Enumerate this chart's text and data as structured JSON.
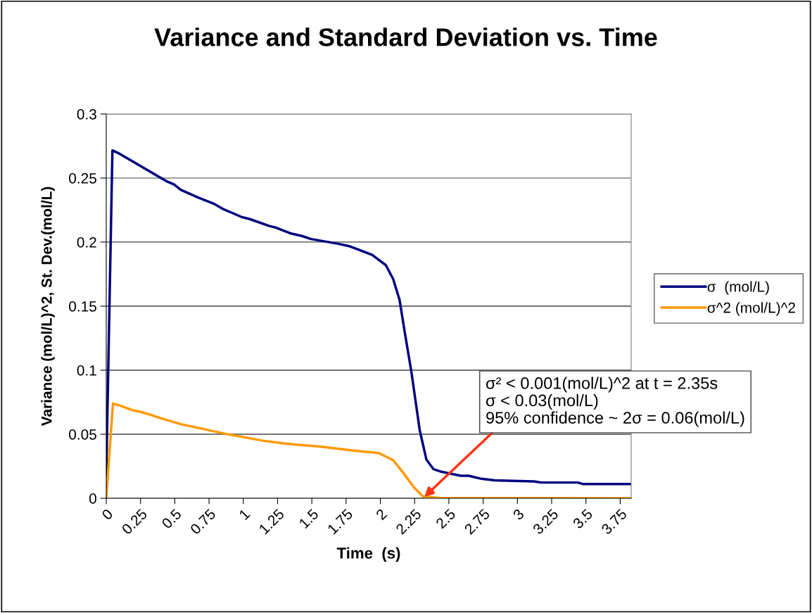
{
  "chart_data": {
    "type": "line",
    "title": "Variance and Standard Deviation vs. Time",
    "xlabel": "Time  (s)",
    "ylabel": "Variance (mol/L)^2, St. Dev.(mol/L)",
    "series": [
      {
        "name": "σ  (mol/L)",
        "color": "#000080",
        "x": [
          0,
          0.045,
          0.097,
          0.438,
          0.495,
          0.543,
          0.667,
          0.79,
          0.857,
          0.99,
          1.047,
          1.19,
          1.237,
          1.342,
          1.427,
          1.494,
          1.693,
          1.778,
          1.94,
          2.04,
          2.093,
          2.14,
          2.178,
          2.226,
          2.287,
          2.336,
          2.388,
          2.445,
          2.587,
          2.644,
          2.738,
          2.834,
          2.967,
          3.118,
          3.175,
          3.44,
          3.48,
          3.829
        ],
        "values": [
          0.018,
          0.2716,
          0.269,
          0.2476,
          0.245,
          0.2409,
          0.235,
          0.2297,
          0.2256,
          0.2195,
          0.218,
          0.2126,
          0.2113,
          0.2069,
          0.2048,
          0.2024,
          0.1987,
          0.1967,
          0.19,
          0.182,
          0.1713,
          0.155,
          0.1297,
          0.099,
          0.0533,
          0.0302,
          0.0227,
          0.0207,
          0.0176,
          0.0176,
          0.0152,
          0.014,
          0.0136,
          0.0132,
          0.0123,
          0.0123,
          0.0111,
          0.0111
        ]
      },
      {
        "name": "σ^2 (mol/L)^2",
        "color": "#ff9900",
        "x": [
          0,
          0.049,
          0.097,
          0.2,
          0.248,
          0.343,
          0.4,
          0.486,
          0.543,
          0.876,
          1.142,
          1.275,
          1.37,
          1.56,
          1.826,
          1.988,
          2.093,
          2.168,
          2.245,
          2.312,
          2.435,
          3.829
        ],
        "values": [
          0,
          0.074,
          0.0725,
          0.0685,
          0.0676,
          0.0645,
          0.0624,
          0.0597,
          0.0579,
          0.0502,
          0.045,
          0.0431,
          0.042,
          0.0404,
          0.037,
          0.0353,
          0.0298,
          0.0197,
          0.0085,
          0.0013,
          0.0003,
          0
        ]
      }
    ],
    "xlim": [
      0,
      3.83
    ],
    "xticks": [
      0,
      0.25,
      0.5,
      0.75,
      1,
      1.25,
      1.5,
      1.75,
      2,
      2.25,
      2.5,
      2.75,
      3,
      3.25,
      3.5,
      3.75
    ],
    "ylim": [
      0,
      0.3
    ],
    "yticks": [
      0,
      0.05,
      0.1,
      0.15,
      0.2,
      0.25,
      0.3
    ],
    "grid": "y",
    "legend": "right",
    "marker": "none",
    "line_style": "solid",
    "annotations": [
      {
        "text": "σ² < 0.001(mol/L)^2 at t = 2.35s\nσ < 0.03(mol/L)\n95% confidence ~ 2σ = 0.06(mol/L)",
        "x": 2.32,
        "y": 0.001
      }
    ]
  }
}
